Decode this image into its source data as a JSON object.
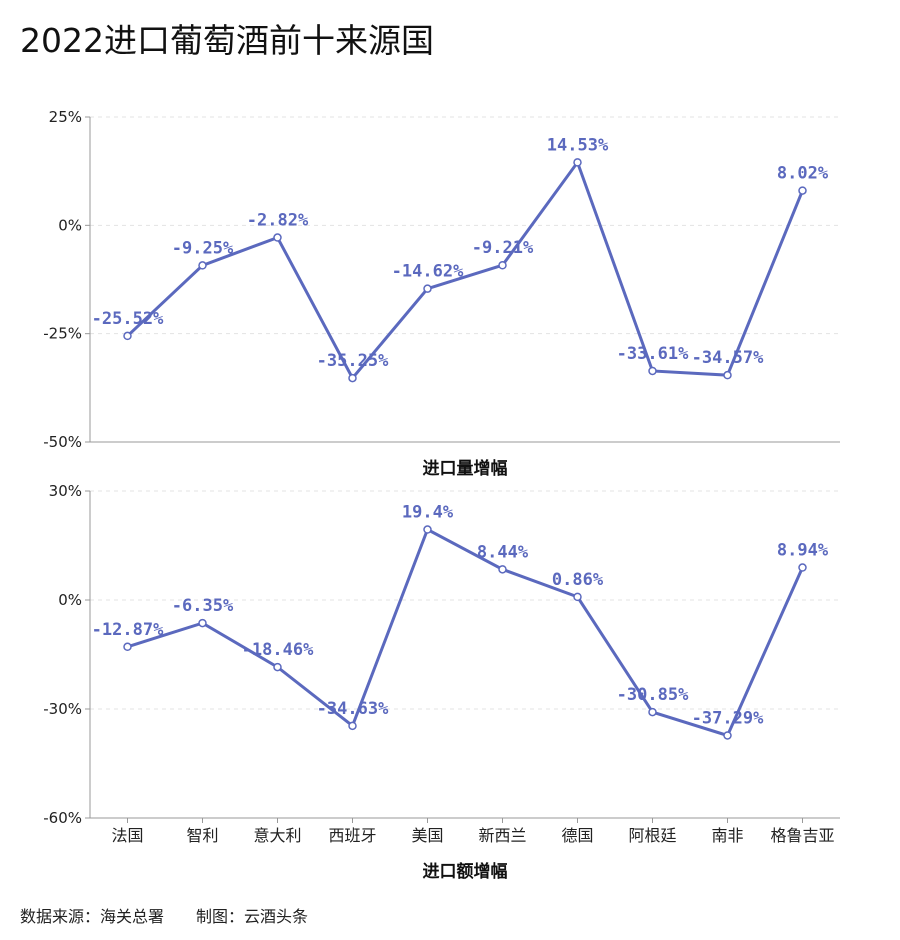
{
  "title": "2022进口葡萄酒前十来源国",
  "source": {
    "text": "数据来源：海关总署　　制图：云酒头条"
  },
  "colors": {
    "line": "#5b69be",
    "label": "#5b69be",
    "grid": "#e3e3e3",
    "axis": "#999999"
  },
  "chart_data": [
    {
      "type": "line",
      "title": "进口量增幅",
      "categories": [
        "法国",
        "智利",
        "意大利",
        "西班牙",
        "美国",
        "新西兰",
        "德国",
        "阿根廷",
        "南非",
        "格鲁吉亚"
      ],
      "values": [
        -25.52,
        -9.25,
        -2.82,
        -35.25,
        -14.62,
        -9.21,
        14.53,
        -33.61,
        -34.57,
        8.02
      ],
      "labels": [
        "-25.52%",
        "-9.25%",
        "-2.82%",
        "-35.25%",
        "-14.62%",
        "-9.21%",
        "14.53%",
        "-33.61%",
        "-34.57%",
        "8.02%"
      ],
      "ylim": [
        -50,
        25
      ],
      "yticks": [
        25,
        0,
        -25,
        -50
      ],
      "ytick_labels": [
        "25%",
        "0%",
        "-25%",
        "-50%"
      ],
      "grid": true
    },
    {
      "type": "line",
      "title": "进口额增幅",
      "categories": [
        "法国",
        "智利",
        "意大利",
        "西班牙",
        "美国",
        "新西兰",
        "德国",
        "阿根廷",
        "南非",
        "格鲁吉亚"
      ],
      "values": [
        -12.87,
        -6.35,
        -18.46,
        -34.63,
        19.4,
        8.44,
        0.86,
        -30.85,
        -37.29,
        8.94
      ],
      "labels": [
        "-12.87%",
        "-6.35%",
        "-18.46%",
        "-34.63%",
        "19.4%",
        "8.44%",
        "0.86%",
        "-30.85%",
        "-37.29%",
        "8.94%"
      ],
      "ylim": [
        -60,
        30
      ],
      "yticks": [
        30,
        0,
        -30,
        -60
      ],
      "ytick_labels": [
        "30%",
        "0%",
        "-30%",
        "-60%"
      ],
      "grid": true
    }
  ]
}
